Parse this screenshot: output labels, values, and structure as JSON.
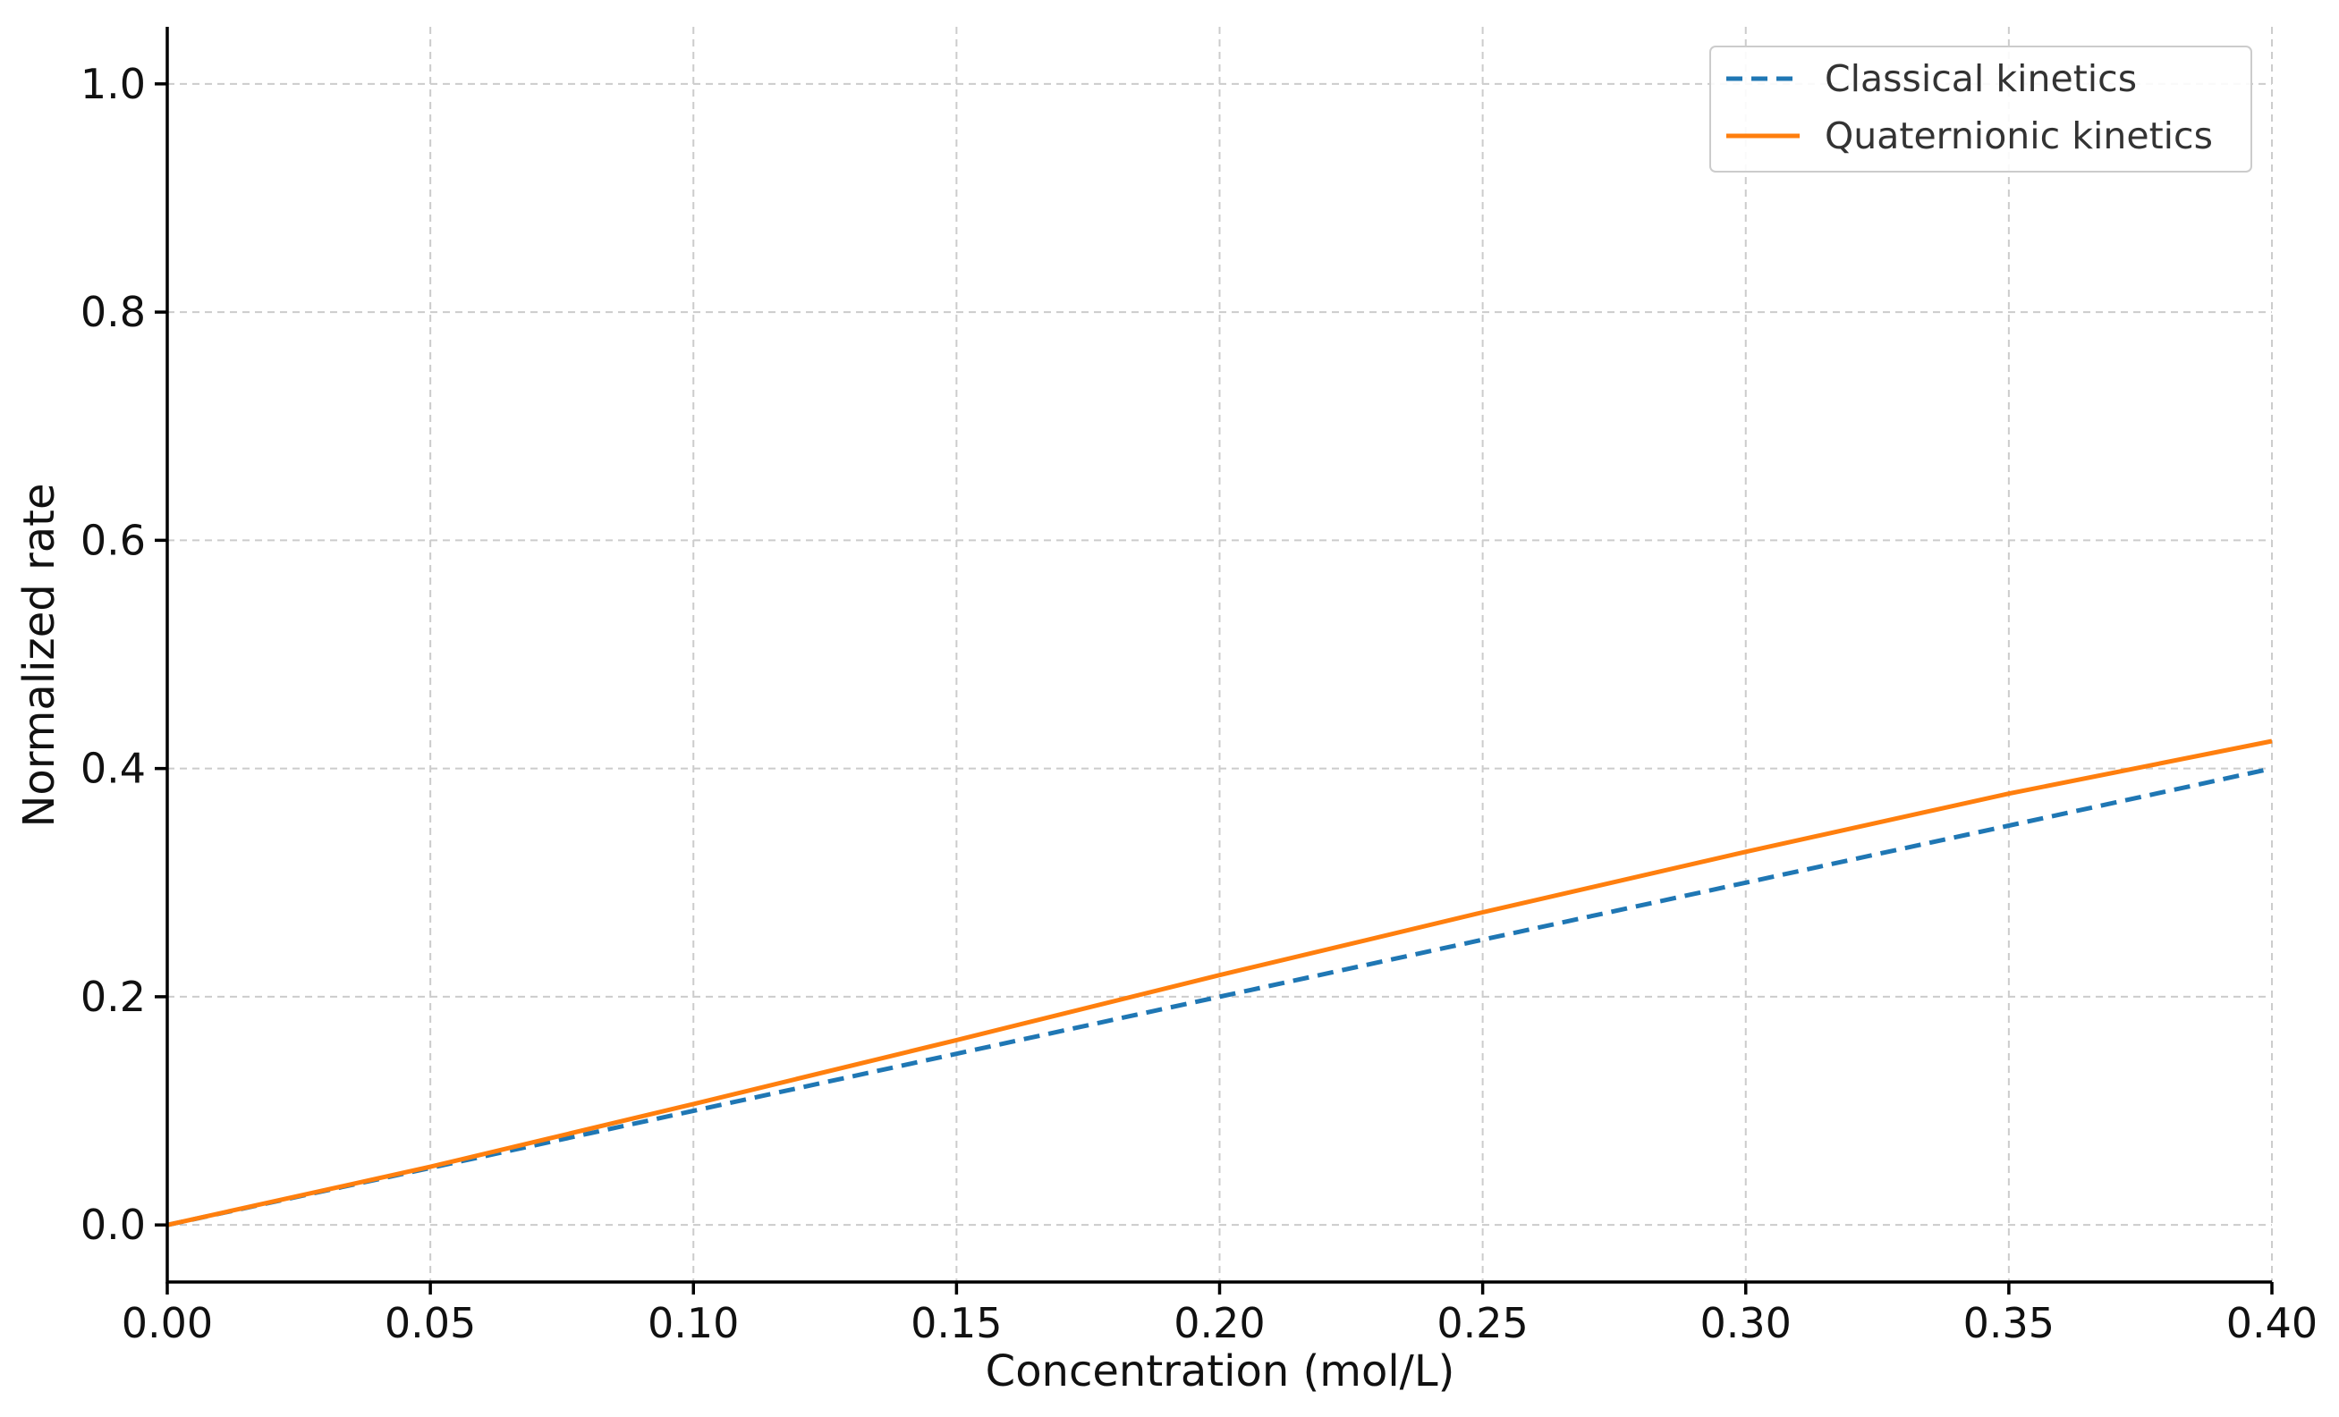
{
  "chart_data": {
    "type": "line",
    "title": "",
    "xlabel": "Concentration (mol/L)",
    "ylabel": "Normalized rate",
    "xlim": [
      0.0,
      0.4
    ],
    "ylim": [
      -0.05,
      1.05
    ],
    "x_ticks": [
      0.0,
      0.05,
      0.1,
      0.15,
      0.2,
      0.25,
      0.3,
      0.35,
      0.4
    ],
    "x_tick_labels": [
      "0.00",
      "0.05",
      "0.10",
      "0.15",
      "0.20",
      "0.25",
      "0.30",
      "0.35",
      "0.40"
    ],
    "y_ticks": [
      0.0,
      0.2,
      0.4,
      0.6,
      0.8,
      1.0
    ],
    "y_tick_labels": [
      "0.0",
      "0.2",
      "0.4",
      "0.6",
      "0.8",
      "1.0"
    ],
    "grid": true,
    "legend_position": "top-right",
    "series": [
      {
        "name": "Classical kinetics",
        "color": "#1f77b4",
        "line_style": "dashed",
        "x": [
          0.0,
          0.05,
          0.1,
          0.15,
          0.2,
          0.25,
          0.3,
          0.35,
          0.4
        ],
        "y": [
          0.0,
          0.05,
          0.1,
          0.15,
          0.2,
          0.25,
          0.3,
          0.35,
          0.4
        ]
      },
      {
        "name": "Quaternionic kinetics",
        "color": "#ff7f0e",
        "line_style": "solid",
        "x": [
          0.0,
          0.05,
          0.1,
          0.15,
          0.2,
          0.25,
          0.3,
          0.35,
          0.4
        ],
        "y": [
          0.0,
          0.051,
          0.106,
          0.162,
          0.219,
          0.274,
          0.327,
          0.378,
          0.424
        ]
      }
    ]
  }
}
